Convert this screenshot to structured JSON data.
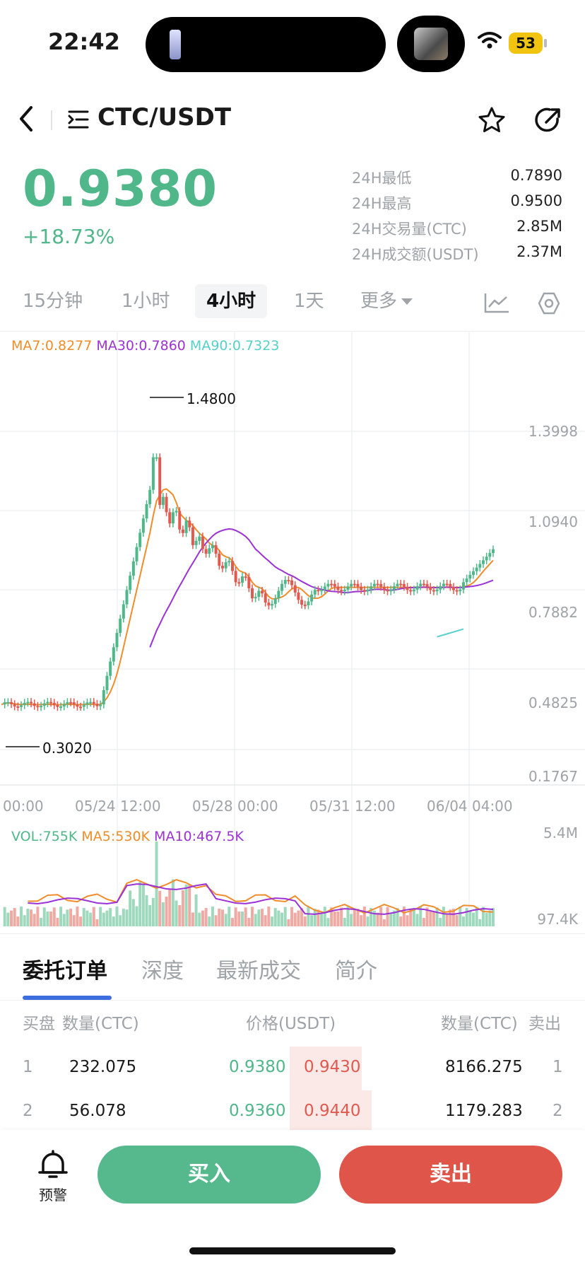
{
  "status_bar": {
    "time": "22:42",
    "battery": "53"
  },
  "header": {
    "pair": "CTC/USDT"
  },
  "price": {
    "last": "0.9380",
    "change": "+18.73%"
  },
  "stats": [
    {
      "label": "24H最低",
      "value": "0.7890"
    },
    {
      "label": "24H最高",
      "value": "0.9500"
    },
    {
      "label": "24H交易量(CTC)",
      "value": "2.85M"
    },
    {
      "label": "24H成交额(USDT)",
      "value": "2.37M"
    }
  ],
  "intervals": {
    "m15": "15分钟",
    "h1": "1小时",
    "h4": "4小时",
    "d1": "1天",
    "more": "更多"
  },
  "ma_legend": {
    "ma7": "MA7:0.8277",
    "ma30": "MA30:0.7860",
    "ma90": "MA90:0.7323"
  },
  "vol_legend": {
    "vol": "VOL:755K",
    "ma5": "MA5:530K",
    "ma10": "MA10:467.5K"
  },
  "chart_data": {
    "type": "candlestick",
    "y_ticks": [
      "1.3998",
      "1.0940",
      "0.7882",
      "0.4825",
      "0.1767"
    ],
    "x_ticks": [
      "00:00",
      "05/24 12:00",
      "05/28 00:00",
      "05/31 12:00",
      "06/04 04:00"
    ],
    "high_label": "1.4800",
    "low_label": "0.3020",
    "vol_ticks": [
      "5.4M",
      "97.4K"
    ],
    "ylim": [
      0.1767,
      1.3998
    ]
  },
  "orderbook": {
    "tabs": {
      "orders": "委托订单",
      "depth": "深度",
      "trades": "最新成交",
      "intro": "简介"
    },
    "headers": {
      "bid": "买盘",
      "qty_left": "数量(CTC)",
      "price": "价格(USDT)",
      "qty_right": "数量(CTC)",
      "ask": "卖出"
    },
    "rows": [
      {
        "idx": "1",
        "bid_qty": "232.075",
        "bid_price": "0.9380",
        "ask_price": "0.9430",
        "ask_qty": "8166.275",
        "idx_r": "1"
      },
      {
        "idx": "2",
        "bid_qty": "56.078",
        "bid_price": "0.9360",
        "ask_price": "0.9440",
        "ask_qty": "1179.283",
        "idx_r": "2"
      }
    ]
  },
  "bottom": {
    "alert": "预警",
    "buy": "买入",
    "sell": "卖出"
  }
}
